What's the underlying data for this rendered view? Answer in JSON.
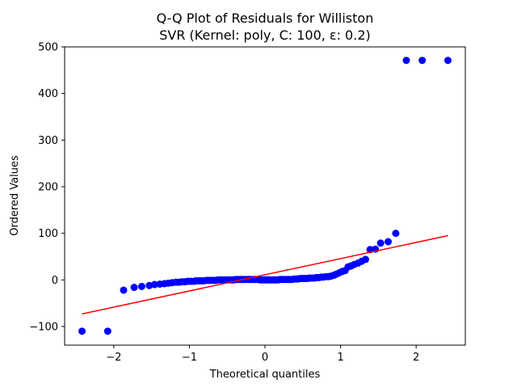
{
  "chart_data": {
    "type": "scatter",
    "title_line1": "Q-Q Plot of Residuals for Williston",
    "title_line2": "SVR (Kernel: poly, C: 100, ε: 0.2)",
    "xlabel": "Theoretical quantiles",
    "ylabel": "Ordered Values",
    "xlim": [
      -2.65,
      2.65
    ],
    "ylim": [
      -140,
      500
    ],
    "xticks": [
      -2,
      -1,
      0,
      1,
      2
    ],
    "xtick_labels": [
      "−2",
      "−1",
      "0",
      "1",
      "2"
    ],
    "yticks": [
      -100,
      0,
      100,
      200,
      300,
      400,
      500
    ],
    "ytick_labels": [
      "−100",
      "0",
      "100",
      "200",
      "300",
      "400",
      "500"
    ],
    "grid": false,
    "colors": {
      "points": "#0000ff",
      "fit_line": "#ff0000",
      "axes": "#000000"
    },
    "fit_line": {
      "x": [
        -2.42,
        2.42
      ],
      "y": [
        -73,
        95
      ]
    },
    "points": {
      "x": [
        -2.42,
        -2.08,
        -1.87,
        -1.73,
        -1.63,
        -1.53,
        -1.46,
        -1.39,
        -1.33,
        -1.28,
        -1.23,
        -1.18,
        -1.14,
        -1.1,
        -1.06,
        -1.02,
        -0.98,
        -0.94,
        -0.91,
        -0.87,
        -0.84,
        -0.81,
        -0.77,
        -0.74,
        -0.71,
        -0.68,
        -0.65,
        -0.62,
        -0.59,
        -0.56,
        -0.53,
        -0.5,
        -0.47,
        -0.44,
        -0.42,
        -0.39,
        -0.36,
        -0.33,
        -0.31,
        -0.28,
        -0.25,
        -0.22,
        -0.2,
        -0.17,
        -0.14,
        -0.12,
        -0.09,
        -0.06,
        -0.04,
        -0.01,
        0.01,
        0.04,
        0.06,
        0.09,
        0.12,
        0.14,
        0.17,
        0.2,
        0.22,
        0.25,
        0.28,
        0.31,
        0.33,
        0.36,
        0.39,
        0.42,
        0.44,
        0.47,
        0.5,
        0.53,
        0.56,
        0.59,
        0.62,
        0.65,
        0.68,
        0.71,
        0.74,
        0.77,
        0.81,
        0.84,
        0.87,
        0.91,
        0.94,
        0.98,
        1.02,
        1.06,
        1.1,
        1.14,
        1.18,
        1.23,
        1.28,
        1.33,
        1.39,
        1.46,
        1.53,
        1.63,
        1.73,
        1.87,
        2.08,
        2.42
      ],
      "y": [
        -110,
        -110,
        -22,
        -16,
        -14,
        -12,
        -10,
        -9,
        -8,
        -7,
        -6,
        -5,
        -5,
        -4,
        -4,
        -3,
        -3,
        -3,
        -2,
        -2,
        -2,
        -2,
        -1,
        -1,
        -1,
        -1,
        -1,
        0,
        0,
        0,
        0,
        0,
        0,
        0,
        0,
        1,
        1,
        1,
        1,
        1,
        1,
        1,
        1,
        1,
        1,
        1,
        1,
        0,
        0,
        0,
        0,
        0,
        0,
        0,
        0,
        0,
        0,
        1,
        1,
        1,
        1,
        1,
        1,
        1,
        2,
        2,
        2,
        3,
        3,
        3,
        3,
        4,
        4,
        4,
        5,
        5,
        6,
        6,
        7,
        7,
        8,
        10,
        12,
        15,
        18,
        20,
        28,
        30,
        33,
        36,
        40,
        44,
        65,
        66,
        79,
        82,
        100,
        471,
        471,
        471
      ]
    }
  }
}
